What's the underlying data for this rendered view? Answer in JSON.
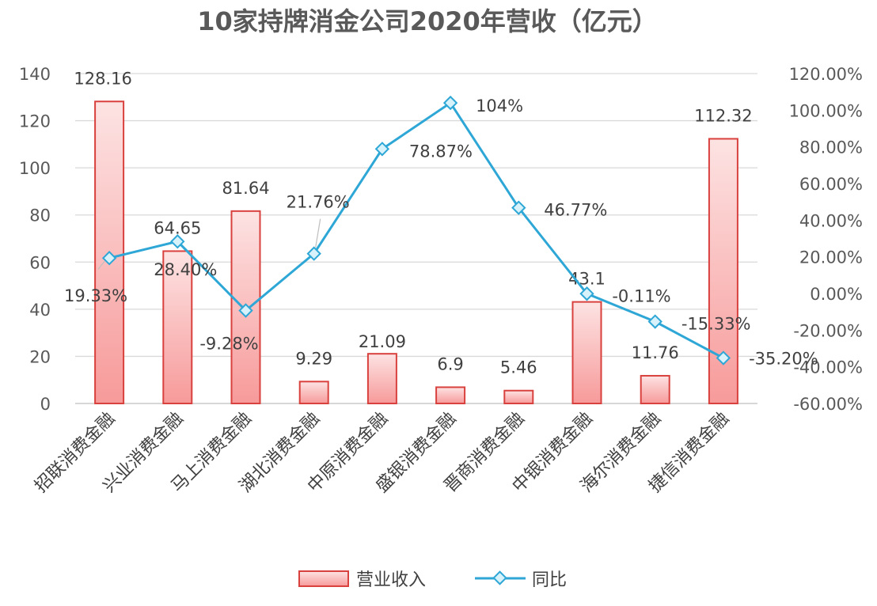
{
  "chart_data": {
    "type": "bar+line",
    "title": "10家持牌消金公司2020年营收（亿元）",
    "categories": [
      "招联消费金融",
      "兴业消费金融",
      "马上消费金融",
      "湖北消费金融",
      "中原消费金融",
      "盛银消费金融",
      "晋商消费金融",
      "中银消费金融",
      "海尔消费金融",
      "捷信消费金融"
    ],
    "series": [
      {
        "name": "营业收入",
        "type": "bar",
        "axis": "left",
        "values": [
          128.16,
          64.65,
          81.64,
          9.29,
          21.09,
          6.9,
          5.46,
          43.1,
          11.76,
          112.32
        ],
        "labels": [
          "128.16",
          "64.65",
          "81.64",
          "9.29",
          "21.09",
          "6.9",
          "5.46",
          "43.1",
          "11.76",
          "112.32"
        ],
        "color": "#f4a5a5",
        "border": "#d9413e"
      },
      {
        "name": "同比",
        "type": "line",
        "axis": "right",
        "values": [
          19.33,
          28.4,
          -9.28,
          21.76,
          78.87,
          104,
          46.77,
          -0.11,
          -15.33,
          -35.2
        ],
        "labels": [
          "19.33%",
          "28.40%",
          "-9.28%",
          "21.76%",
          "78.87%",
          "104%",
          "46.77%",
          "-0.11%",
          "-15.33%",
          "-35.20%"
        ],
        "color": "#2ea7d6",
        "marker": "diamond"
      }
    ],
    "left_axis": {
      "range": [
        0,
        140
      ],
      "ticks": [
        "0",
        "20",
        "40",
        "60",
        "80",
        "100",
        "120",
        "140"
      ]
    },
    "right_axis": {
      "range": [
        -60,
        120
      ],
      "unit": "%",
      "ticks": [
        "-60.00%",
        "-40.00%",
        "-20.00%",
        "0.00%",
        "20.00%",
        "40.00%",
        "60.00%",
        "80.00%",
        "100.00%",
        "120.00%"
      ]
    },
    "grid": true,
    "legend": "bottom"
  }
}
